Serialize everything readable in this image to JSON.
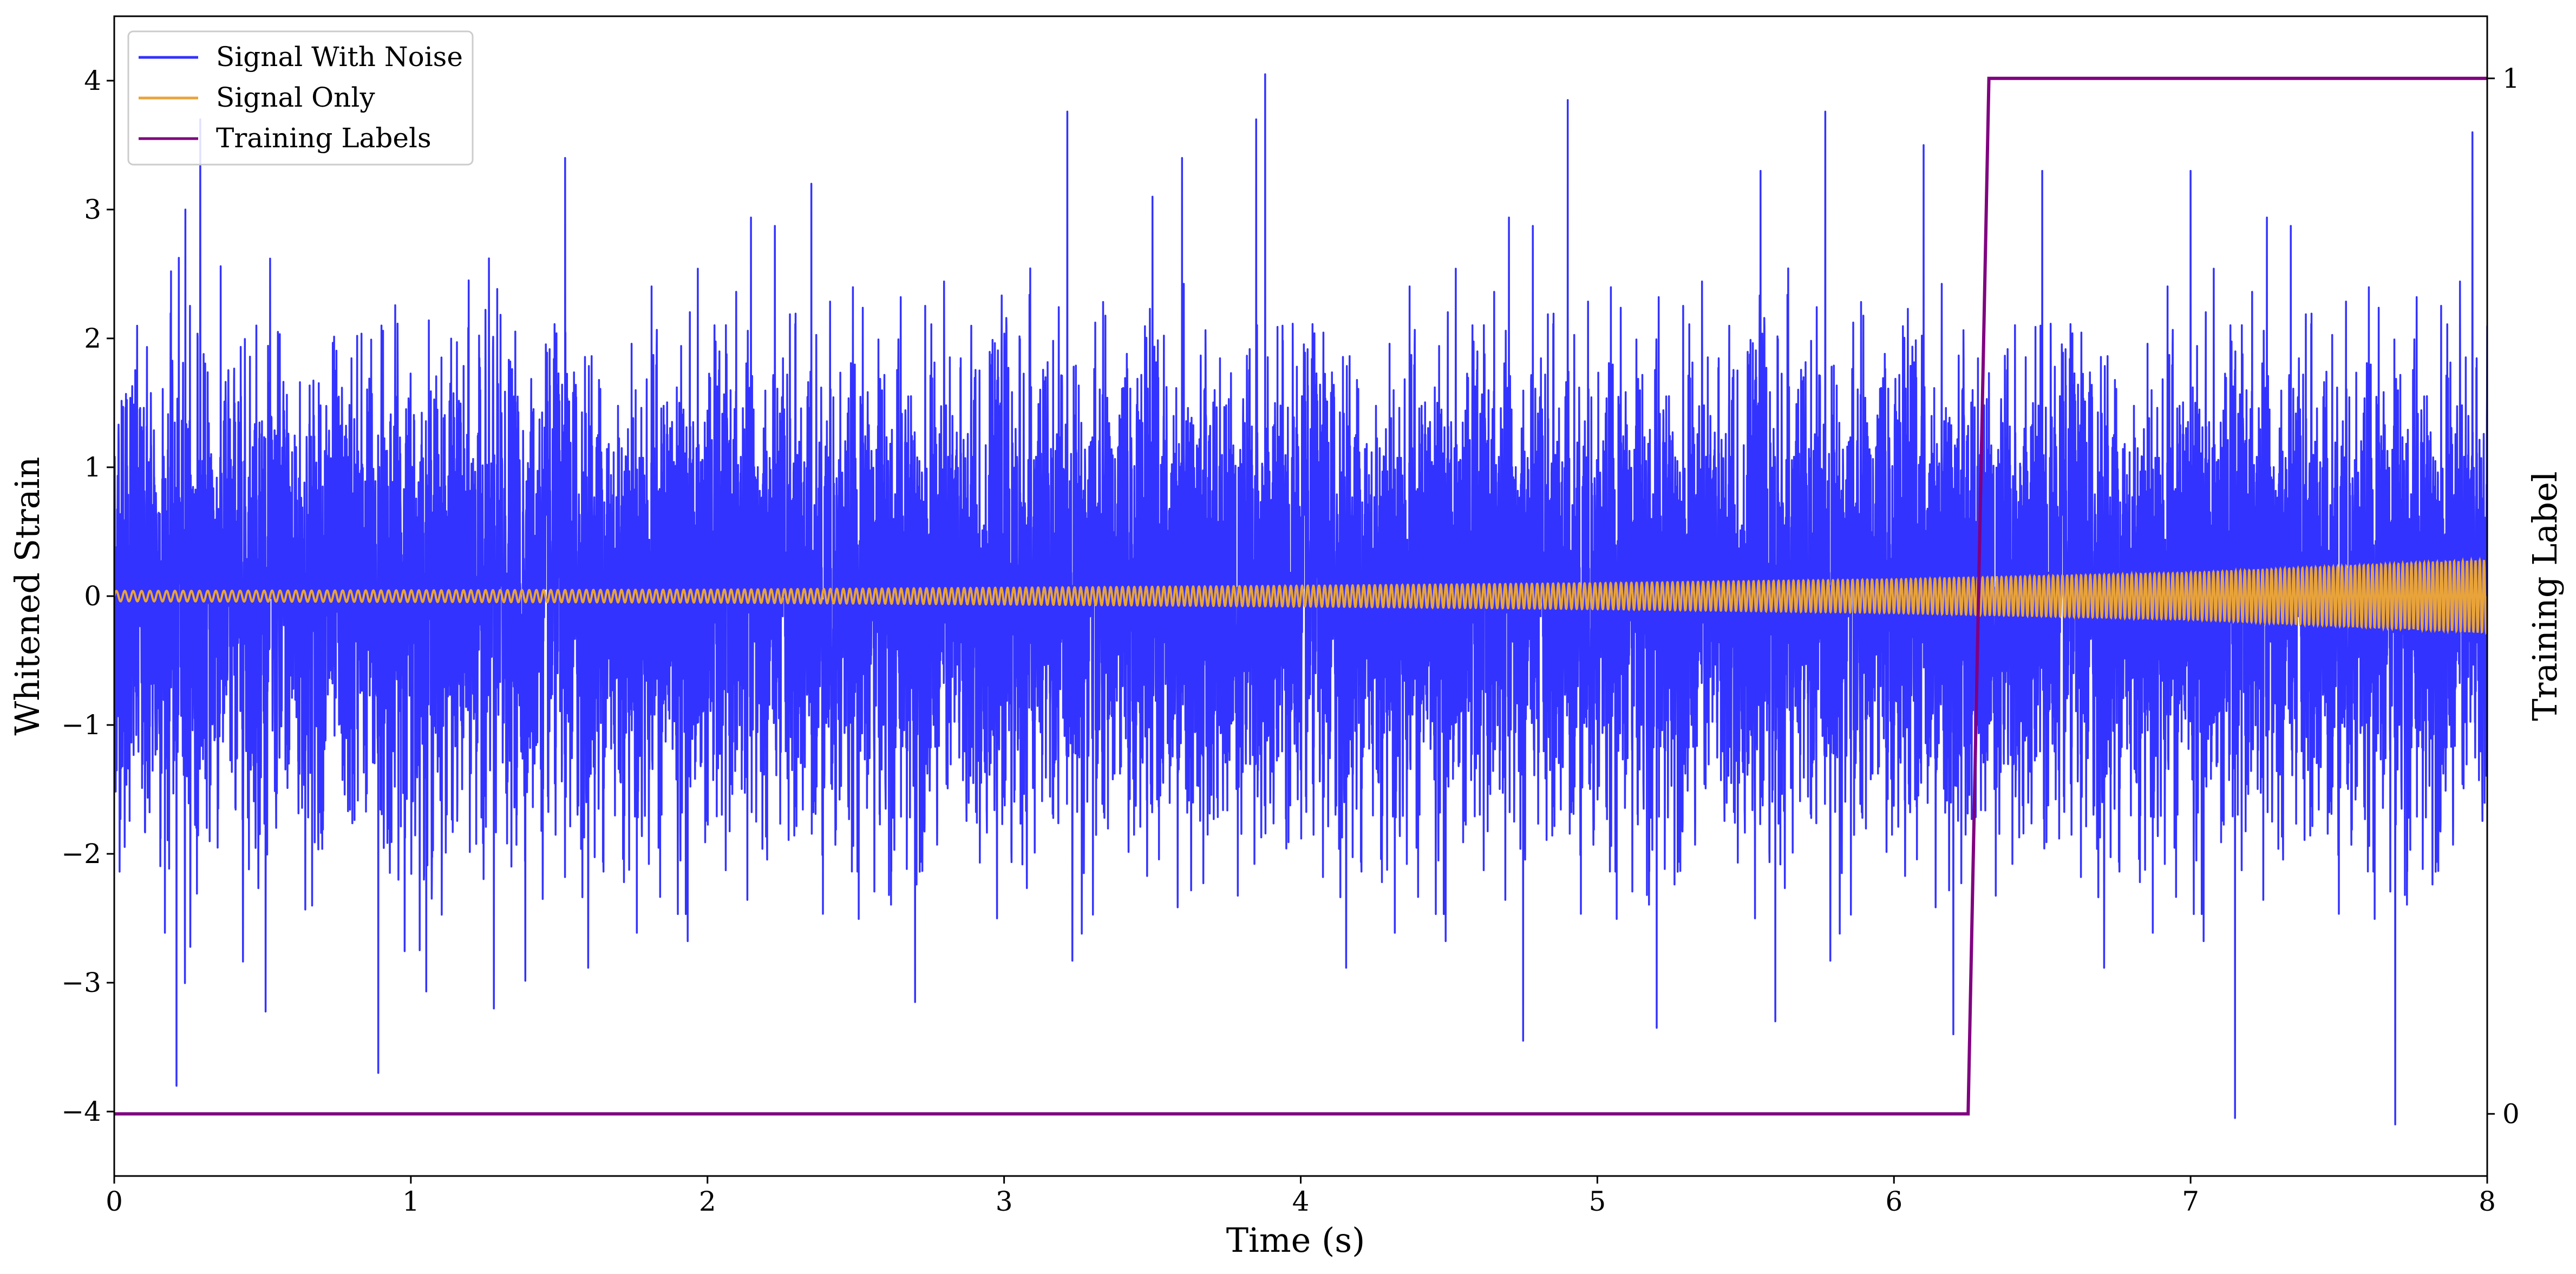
{
  "chart_data": {
    "type": "line",
    "xlabel": "Time (s)",
    "ylabel": "Whitened Strain",
    "y2label": "Training Label",
    "xlim": [
      0,
      8
    ],
    "ylim": [
      -4.5,
      4.5
    ],
    "y2lim": [
      -0.06,
      1.06
    ],
    "xticks": [
      0,
      1,
      2,
      3,
      4,
      5,
      6,
      7,
      8
    ],
    "yticks": [
      -4,
      -3,
      -2,
      -1,
      0,
      1,
      2,
      3,
      4
    ],
    "y2ticks": [
      0,
      1
    ],
    "grid": false,
    "legend_position": "top-left",
    "colors": {
      "signal_with_noise": "#3333ff",
      "signal_only": "#e8a33a",
      "training_labels": "#800080"
    },
    "series": [
      {
        "name": "Signal With Noise",
        "axis": "left",
        "description_points": {
          "noise_std_approx": 0.85,
          "notable_peaks": [
            [
              0.29,
              3.7
            ],
            [
              0.24,
              3.0
            ],
            [
              1.52,
              3.4
            ],
            [
              2.35,
              3.2
            ],
            [
              3.5,
              3.1
            ],
            [
              3.6,
              3.4
            ],
            [
              3.85,
              3.7
            ],
            [
              3.88,
              4.05
            ],
            [
              4.9,
              3.85
            ],
            [
              5.55,
              3.3
            ],
            [
              6.1,
              3.5
            ],
            [
              6.5,
              3.3
            ],
            [
              7.0,
              3.3
            ],
            [
              7.95,
              3.6
            ]
          ],
          "notable_troughs": [
            [
              0.21,
              -3.8
            ],
            [
              0.89,
              -3.7
            ],
            [
              1.28,
              -3.2
            ],
            [
              2.7,
              -3.15
            ],
            [
              4.75,
              -3.45
            ],
            [
              5.2,
              -3.35
            ],
            [
              5.6,
              -3.3
            ],
            [
              6.2,
              -3.4
            ],
            [
              7.15,
              -4.05
            ],
            [
              7.69,
              -4.1
            ]
          ]
        }
      },
      {
        "name": "Signal Only",
        "axis": "left",
        "description_points": {
          "envelope": [
            [
              0,
              0.04
            ],
            [
              2,
              0.05
            ],
            [
              4,
              0.08
            ],
            [
              5,
              0.1
            ],
            [
              6,
              0.13
            ],
            [
              7,
              0.18
            ],
            [
              8,
              0.28
            ]
          ],
          "frequency_hz": [
            [
              0,
              35
            ],
            [
              8,
              70
            ]
          ]
        }
      },
      {
        "name": "Training Labels",
        "axis": "right",
        "x": [
          0,
          6.25,
          6.32,
          8
        ],
        "values": [
          0,
          0,
          1,
          1
        ]
      }
    ]
  }
}
